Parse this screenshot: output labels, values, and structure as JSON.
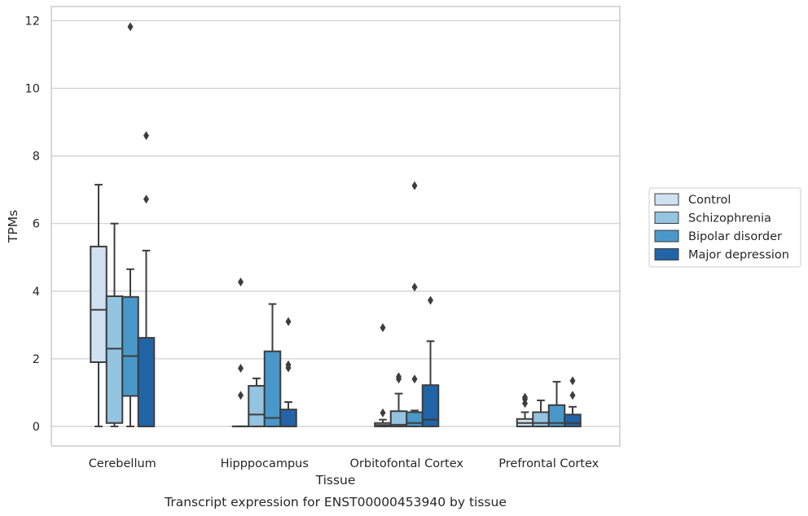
{
  "chart_data": {
    "type": "box",
    "caption": "Transcript expression for ENST00000453940 by tissue",
    "xlabel": "Tissue",
    "ylabel": "TPMs",
    "ylim": [
      -0.58,
      12.42
    ],
    "yticks": [
      0,
      2,
      4,
      6,
      8,
      10,
      12
    ],
    "grid": "horizontal",
    "legend_position": "right",
    "categories": [
      "Cerebellum",
      "Hipppocampus",
      "Orbitofontal Cortex",
      "Prefrontal Cortex"
    ],
    "series": [
      {
        "name": "Control",
        "color": "#d0e1f2",
        "boxes": [
          {
            "q1": 1.9,
            "median": 3.45,
            "q3": 5.32,
            "whislo": 0.0,
            "whishi": 7.15,
            "fliers": []
          },
          {
            "q1": 0.0,
            "median": 0.0,
            "q3": 0.0,
            "whislo": 0.0,
            "whishi": 0.0,
            "fliers": [
              0.92,
              1.72,
              4.27
            ]
          },
          {
            "q1": 0.0,
            "median": 0.04,
            "q3": 0.1,
            "whislo": 0.0,
            "whishi": 0.2,
            "fliers": [
              0.4,
              2.92
            ]
          },
          {
            "q1": 0.0,
            "median": 0.1,
            "q3": 0.22,
            "whislo": 0.0,
            "whishi": 0.42,
            "fliers": [
              0.68,
              0.8,
              0.86
            ]
          }
        ]
      },
      {
        "name": "Schizophrenia",
        "color": "#94c4df",
        "boxes": [
          {
            "q1": 0.1,
            "median": 2.3,
            "q3": 3.85,
            "whislo": 0.0,
            "whishi": 6.0,
            "fliers": []
          },
          {
            "q1": 0.0,
            "median": 0.35,
            "q3": 1.2,
            "whislo": 0.0,
            "whishi": 1.42,
            "fliers": []
          },
          {
            "q1": 0.0,
            "median": 0.05,
            "q3": 0.45,
            "whislo": 0.0,
            "whishi": 0.97,
            "fliers": [
              1.4,
              1.47
            ]
          },
          {
            "q1": 0.0,
            "median": 0.1,
            "q3": 0.42,
            "whislo": 0.0,
            "whishi": 0.77,
            "fliers": []
          }
        ]
      },
      {
        "name": "Bipolar disorder",
        "color": "#4a98c9",
        "boxes": [
          {
            "q1": 0.9,
            "median": 2.08,
            "q3": 3.83,
            "whislo": 0.0,
            "whishi": 4.65,
            "fliers": [
              11.82
            ]
          },
          {
            "q1": 0.0,
            "median": 0.25,
            "q3": 2.22,
            "whislo": 0.0,
            "whishi": 3.62,
            "fliers": []
          },
          {
            "q1": 0.0,
            "median": 0.1,
            "q3": 0.42,
            "whislo": 0.0,
            "whishi": 0.47,
            "fliers": [
              1.4,
              4.12,
              7.12
            ]
          },
          {
            "q1": 0.0,
            "median": 0.1,
            "q3": 0.63,
            "whislo": 0.0,
            "whishi": 1.32,
            "fliers": []
          }
        ]
      },
      {
        "name": "Major depression",
        "color": "#2264a8",
        "boxes": [
          {
            "q1": 0.0,
            "median": 0.0,
            "q3": 2.62,
            "whislo": 0.0,
            "whishi": 5.2,
            "fliers": [
              6.72,
              8.6
            ]
          },
          {
            "q1": 0.0,
            "median": 0.0,
            "q3": 0.5,
            "whislo": 0.0,
            "whishi": 0.72,
            "fliers": [
              1.73,
              1.82,
              3.1
            ]
          },
          {
            "q1": 0.0,
            "median": 0.2,
            "q3": 1.22,
            "whislo": 0.0,
            "whishi": 2.52,
            "fliers": [
              3.73
            ]
          },
          {
            "q1": 0.0,
            "median": 0.1,
            "q3": 0.35,
            "whislo": 0.0,
            "whishi": 0.58,
            "fliers": [
              0.92,
              1.35
            ]
          }
        ]
      }
    ]
  }
}
